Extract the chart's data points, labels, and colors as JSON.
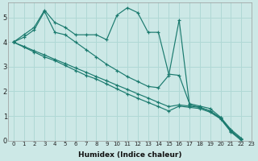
{
  "title": "",
  "xlabel": "Humidex (Indice chaleur)",
  "ylabel": "",
  "bg_color": "#cce8e6",
  "grid_color": "#b0d8d5",
  "line_color": "#1a7a6e",
  "xlim": [
    -0.5,
    23
  ],
  "ylim": [
    0,
    5.6
  ],
  "xticks": [
    0,
    1,
    2,
    3,
    4,
    5,
    6,
    7,
    8,
    9,
    10,
    11,
    12,
    13,
    14,
    15,
    16,
    17,
    18,
    19,
    20,
    21,
    22,
    23
  ],
  "yticks": [
    0,
    1,
    2,
    3,
    4,
    5
  ],
  "series": [
    {
      "x": [
        0,
        1,
        2,
        3,
        4,
        5,
        6,
        7,
        8,
        9,
        10,
        11,
        12,
        13,
        14,
        15,
        16,
        17,
        18,
        19,
        20,
        21,
        22,
        23
      ],
      "y": [
        4.0,
        4.3,
        4.6,
        5.3,
        4.8,
        4.6,
        4.3,
        4.3,
        4.3,
        4.1,
        5.1,
        5.4,
        5.2,
        4.4,
        4.4,
        2.7,
        2.65,
        1.5,
        1.4,
        1.3,
        0.95,
        0.45,
        0.1,
        null
      ]
    },
    {
      "x": [
        0,
        1,
        2,
        3,
        4,
        5,
        6,
        7,
        8,
        9,
        10,
        11,
        12,
        13,
        14,
        15,
        16,
        17,
        18,
        19,
        20,
        21,
        22,
        23
      ],
      "y": [
        4.0,
        4.2,
        4.5,
        5.25,
        4.4,
        4.3,
        4.0,
        3.7,
        3.4,
        3.1,
        2.85,
        2.6,
        2.4,
        2.2,
        2.15,
        2.65,
        4.9,
        1.45,
        1.35,
        1.2,
        0.9,
        0.4,
        0.05,
        null
      ]
    },
    {
      "x": [
        0,
        1,
        2,
        3,
        4,
        5,
        6,
        7,
        8,
        9,
        10,
        11,
        12,
        13,
        14,
        15,
        16,
        17,
        18,
        19,
        20,
        21,
        22,
        23
      ],
      "y": [
        4.0,
        3.83,
        3.65,
        3.48,
        3.3,
        3.13,
        2.95,
        2.78,
        2.6,
        2.43,
        2.25,
        2.08,
        1.9,
        1.73,
        1.55,
        1.38,
        1.45,
        1.4,
        1.35,
        1.2,
        0.92,
        0.38,
        0.05,
        null
      ]
    },
    {
      "x": [
        0,
        1,
        2,
        3,
        4,
        5,
        6,
        7,
        8,
        9,
        10,
        11,
        12,
        13,
        14,
        15,
        16,
        17,
        18,
        19,
        20,
        21,
        22,
        23
      ],
      "y": [
        4.0,
        3.8,
        3.6,
        3.4,
        3.25,
        3.05,
        2.85,
        2.65,
        2.5,
        2.3,
        2.1,
        1.9,
        1.72,
        1.55,
        1.38,
        1.2,
        1.4,
        1.35,
        1.3,
        1.15,
        0.88,
        0.35,
        0.0,
        null
      ]
    }
  ]
}
